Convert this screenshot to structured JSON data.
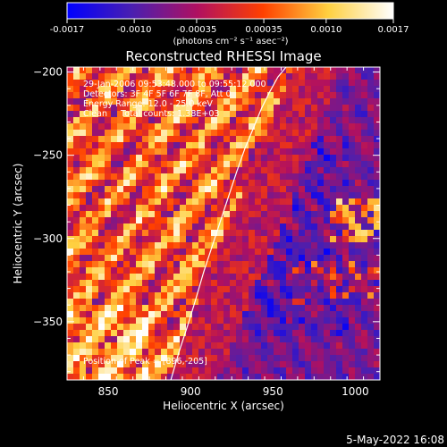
{
  "chart_data": {
    "type": "heatmap",
    "title": "Reconstructed RHESSI Image",
    "xlabel": "Heliocentric X (arcsec)",
    "ylabel": "Heliocentric Y (arcsec)",
    "xlim": [
      825,
      1015
    ],
    "ylim": [
      -385,
      -197
    ],
    "x_ticks": [
      850,
      900,
      950,
      1000
    ],
    "y_ticks": [
      -200,
      -250,
      -300,
      -350
    ],
    "colorbar": {
      "min": -0.0017,
      "max": 0.0017,
      "ticks": [
        "-0.0017",
        "-0.0010",
        "-0.00035",
        "0.00035",
        "0.0010",
        "0.0017"
      ],
      "units": "(photons cm⁻² s⁻¹ asec⁻²)",
      "colors": [
        "#0000ff",
        "#4a1fb0",
        "#b01060",
        "#ff4000",
        "#ffd040",
        "#ffffff"
      ]
    },
    "annotations": [
      "29-Jan-2006 09:53:48.000 to 09:55:12.000",
      "Detectors: 3F 4F 5F 6F 7F 8F, Att 0",
      "Energy Range: 12.0 - 25.0 keV",
      "Clean     Total counts: 1.38E+03"
    ],
    "peak_label": "Position of Peak = [896,-205]",
    "peak": [
      896,
      -205
    ],
    "limb_curve": {
      "x": [
        888,
        893,
        898,
        903,
        908,
        913,
        918,
        923,
        928,
        933,
        938,
        943,
        948,
        953,
        958
      ],
      "y": [
        -385,
        -368,
        -353,
        -337,
        -320,
        -305,
        -290,
        -275,
        -260,
        -246,
        -234,
        -222,
        -212,
        -203,
        -197
      ]
    },
    "grid": false
  },
  "footer_date": "5-May-2022 16:08"
}
